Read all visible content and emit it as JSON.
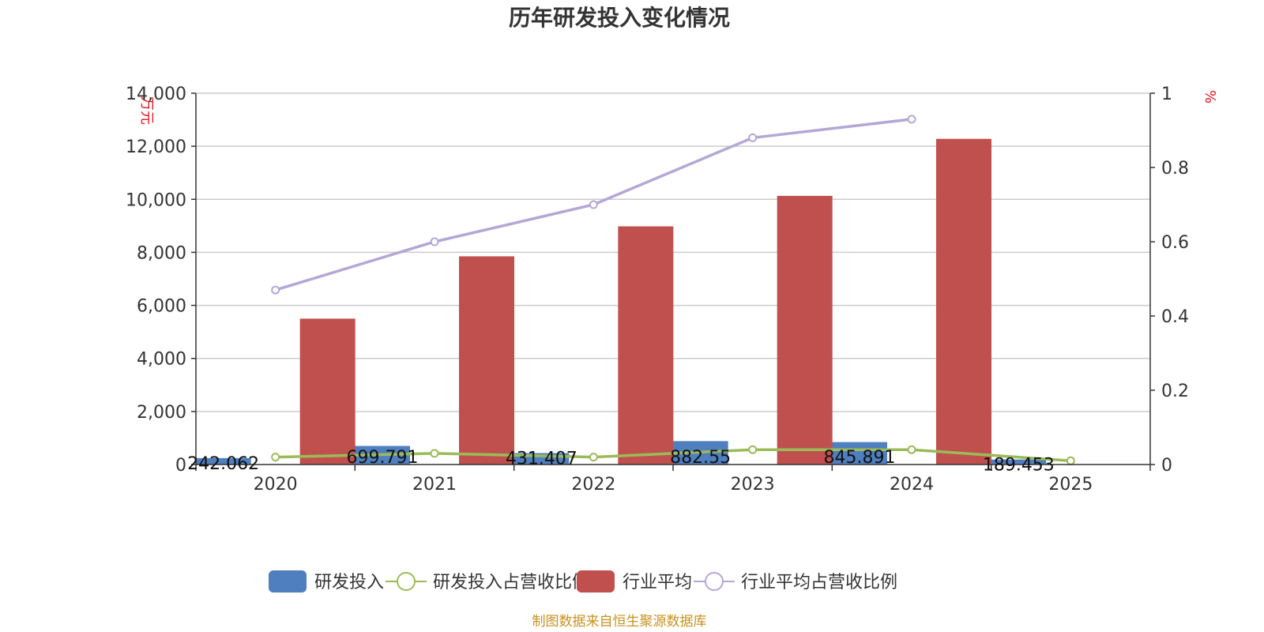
{
  "chart_data": {
    "type": "bar",
    "title": "历年研发投入变化情况",
    "categories": [
      "2020",
      "2021",
      "2022",
      "2023",
      "2024",
      "2025"
    ],
    "y_left": {
      "unit": "万元",
      "ticks": [
        "0",
        "2,000",
        "4,000",
        "6,000",
        "8,000",
        "10,000",
        "12,000",
        "14,000"
      ],
      "ylim": [
        0,
        14000
      ]
    },
    "y_right": {
      "unit": "%",
      "ticks": [
        "0",
        "0.2",
        "0.4",
        "0.6",
        "0.8",
        "1"
      ],
      "ylim": [
        0,
        1
      ]
    },
    "series": [
      {
        "name": "研发投入",
        "type": "bar",
        "axis": "left",
        "color": "#4f7fbf",
        "values": [
          242.062,
          699.791,
          431.407,
          882.55,
          845.891,
          189.453
        ],
        "labels": [
          "242.062",
          "699.791",
          "431.407",
          "882.55",
          "845.891",
          "189.453"
        ]
      },
      {
        "name": "研发投入占营收比例",
        "type": "line",
        "axis": "right",
        "color": "#9bbb59",
        "values": [
          0.02,
          0.03,
          0.02,
          0.04,
          0.04,
          0.01
        ]
      },
      {
        "name": "行业平均",
        "type": "bar",
        "axis": "left",
        "color": "#c0504d",
        "values": [
          5500,
          7850,
          8980,
          10130,
          12280,
          null
        ]
      },
      {
        "name": "行业平均占营收比例",
        "type": "line",
        "axis": "right",
        "color": "#b4a7d6",
        "values": [
          0.47,
          0.6,
          0.7,
          0.88,
          0.93,
          null
        ]
      }
    ],
    "legend": "bottom-center",
    "grid": true
  },
  "source": "制图数据来自恒生聚源数据库"
}
